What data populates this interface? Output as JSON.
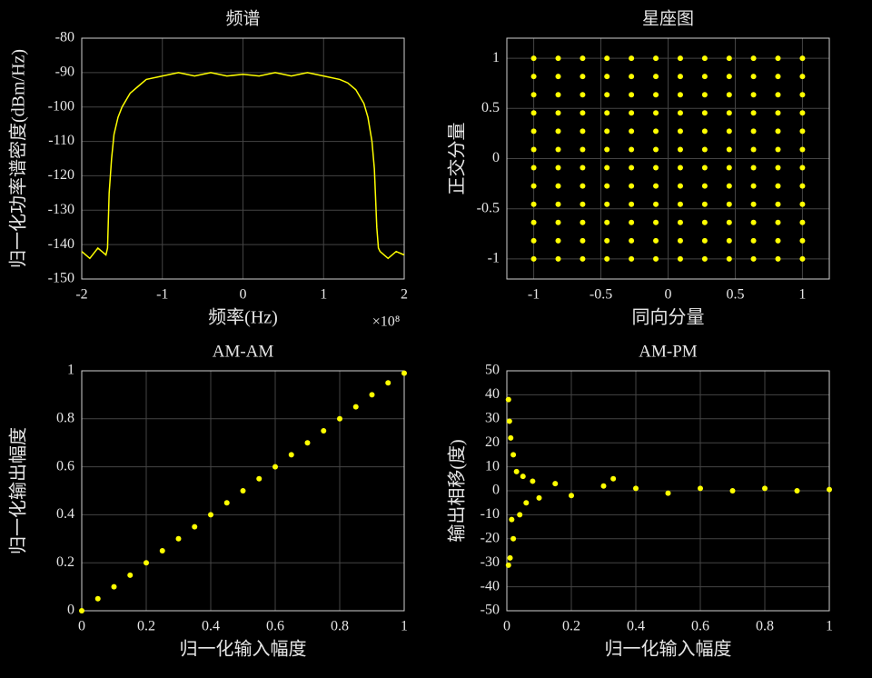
{
  "chart_data": [
    {
      "type": "line",
      "title": "频谱",
      "xlabel": "频率(Hz)",
      "ylabel": "归一化功率谱密度(dBm/Hz)",
      "x_multiplier": "×10⁸",
      "color": "#ffff00",
      "grid": true,
      "xlim": [
        -200000000,
        200000000
      ],
      "ylim": [
        -150,
        -80
      ],
      "xticks": [
        {
          "value": -200000000,
          "label": "-2"
        },
        {
          "value": -100000000,
          "label": "-1"
        },
        {
          "value": 0,
          "label": "0"
        },
        {
          "value": 100000000,
          "label": "1"
        },
        {
          "value": 200000000,
          "label": "2"
        }
      ],
      "yticks": [
        -150,
        -140,
        -130,
        -120,
        -110,
        -100,
        -90,
        -80
      ],
      "x": [
        -200000000,
        -190000000,
        -180000000,
        -170000000,
        -168000000,
        -166000000,
        -163000000,
        -160000000,
        -155000000,
        -150000000,
        -140000000,
        -130000000,
        -120000000,
        -100000000,
        -80000000,
        -60000000,
        -40000000,
        -20000000,
        0,
        20000000,
        40000000,
        60000000,
        80000000,
        100000000,
        120000000,
        130000000,
        140000000,
        150000000,
        155000000,
        160000000,
        163000000,
        166000000,
        168000000,
        170000000,
        180000000,
        190000000,
        200000000
      ],
      "values": [
        -142,
        -144,
        -141,
        -143,
        -141,
        -125,
        -115,
        -108,
        -103,
        -100,
        -96,
        -94,
        -92,
        -91,
        -90,
        -91,
        -90,
        -91,
        -90.5,
        -91,
        -90,
        -91,
        -90,
        -91,
        -92,
        -93,
        -95,
        -99,
        -103,
        -110,
        -118,
        -135,
        -141,
        -142,
        -144,
        -142,
        -143
      ]
    },
    {
      "type": "scatter",
      "title": "星座图",
      "xlabel": "同向分量",
      "ylabel": "正交分量",
      "color": "#ffff00",
      "grid": true,
      "xlim": [
        -1.2,
        1.2
      ],
      "ylim": [
        -1.2,
        1.2
      ],
      "xticks": [
        -1,
        -0.5,
        0,
        0.5,
        1
      ],
      "yticks": [
        -1,
        -0.5,
        0,
        0.5,
        1
      ],
      "x": [
        -1,
        -0.818,
        -0.636,
        -0.455,
        -0.273,
        -0.091,
        0.091,
        0.273,
        0.455,
        0.636,
        0.818,
        1,
        -1,
        -0.818,
        -0.636,
        -0.455,
        -0.273,
        -0.091,
        0.091,
        0.273,
        0.455,
        0.636,
        0.818,
        1,
        -1,
        -0.818,
        -0.636,
        -0.455,
        -0.273,
        -0.091,
        0.091,
        0.273,
        0.455,
        0.636,
        0.818,
        1,
        -1,
        -0.818,
        -0.636,
        -0.455,
        -0.273,
        -0.091,
        0.091,
        0.273,
        0.455,
        0.636,
        0.818,
        1,
        -1,
        -0.818,
        -0.636,
        -0.455,
        -0.273,
        -0.091,
        0.091,
        0.273,
        0.455,
        0.636,
        0.818,
        1,
        -1,
        -0.818,
        -0.636,
        -0.455,
        -0.273,
        -0.091,
        0.091,
        0.273,
        0.455,
        0.636,
        0.818,
        1,
        -1,
        -0.818,
        -0.636,
        -0.455,
        -0.273,
        -0.091,
        0.091,
        0.273,
        0.455,
        0.636,
        0.818,
        1,
        -1,
        -0.818,
        -0.636,
        -0.455,
        -0.273,
        -0.091,
        0.091,
        0.273,
        0.455,
        0.636,
        0.818,
        1,
        -1,
        -0.818,
        -0.636,
        -0.455,
        -0.273,
        -0.091,
        0.091,
        0.273,
        0.455,
        0.636,
        0.818,
        1,
        -1,
        -0.818,
        -0.636,
        -0.455,
        -0.273,
        -0.091,
        0.091,
        0.273,
        0.455,
        0.636,
        0.818,
        1,
        -1,
        -0.818,
        -0.636,
        -0.455,
        -0.273,
        -0.091,
        0.091,
        0.273,
        0.455,
        0.636,
        0.818,
        1,
        -1,
        -0.818,
        -0.636,
        -0.455,
        -0.273,
        -0.091,
        0.091,
        0.273,
        0.455,
        0.636,
        0.818,
        1
      ],
      "values": [
        -1,
        -1,
        -1,
        -1,
        -1,
        -1,
        -1,
        -1,
        -1,
        -1,
        -1,
        -1,
        -0.818,
        -0.818,
        -0.818,
        -0.818,
        -0.818,
        -0.818,
        -0.818,
        -0.818,
        -0.818,
        -0.818,
        -0.818,
        -0.818,
        -0.636,
        -0.636,
        -0.636,
        -0.636,
        -0.636,
        -0.636,
        -0.636,
        -0.636,
        -0.636,
        -0.636,
        -0.636,
        -0.636,
        -0.455,
        -0.455,
        -0.455,
        -0.455,
        -0.455,
        -0.455,
        -0.455,
        -0.455,
        -0.455,
        -0.455,
        -0.455,
        -0.455,
        -0.273,
        -0.273,
        -0.273,
        -0.273,
        -0.273,
        -0.273,
        -0.273,
        -0.273,
        -0.273,
        -0.273,
        -0.273,
        -0.273,
        -0.091,
        -0.091,
        -0.091,
        -0.091,
        -0.091,
        -0.091,
        -0.091,
        -0.091,
        -0.091,
        -0.091,
        -0.091,
        -0.091,
        0.091,
        0.091,
        0.091,
        0.091,
        0.091,
        0.091,
        0.091,
        0.091,
        0.091,
        0.091,
        0.091,
        0.091,
        0.273,
        0.273,
        0.273,
        0.273,
        0.273,
        0.273,
        0.273,
        0.273,
        0.273,
        0.273,
        0.273,
        0.273,
        0.455,
        0.455,
        0.455,
        0.455,
        0.455,
        0.455,
        0.455,
        0.455,
        0.455,
        0.455,
        0.455,
        0.455,
        0.636,
        0.636,
        0.636,
        0.636,
        0.636,
        0.636,
        0.636,
        0.636,
        0.636,
        0.636,
        0.636,
        0.636,
        0.818,
        0.818,
        0.818,
        0.818,
        0.818,
        0.818,
        0.818,
        0.818,
        0.818,
        0.818,
        0.818,
        0.818,
        1,
        1,
        1,
        1,
        1,
        1,
        1,
        1,
        1,
        1,
        1,
        1
      ]
    },
    {
      "type": "scatter",
      "title": "AM-AM",
      "xlabel": "归一化输入幅度",
      "ylabel": "归一化输出幅度",
      "color": "#ffff00",
      "grid": true,
      "xlim": [
        0,
        1
      ],
      "ylim": [
        0,
        1
      ],
      "xticks": [
        0,
        0.2,
        0.4,
        0.6,
        0.8,
        1
      ],
      "yticks": [
        0,
        0.2,
        0.4,
        0.6,
        0.8,
        1
      ],
      "x": [
        0,
        0.05,
        0.1,
        0.15,
        0.2,
        0.25,
        0.3,
        0.35,
        0.4,
        0.45,
        0.5,
        0.55,
        0.6,
        0.65,
        0.7,
        0.75,
        0.8,
        0.85,
        0.9,
        0.95,
        1
      ],
      "values": [
        0,
        0.05,
        0.1,
        0.148,
        0.2,
        0.25,
        0.3,
        0.35,
        0.4,
        0.45,
        0.5,
        0.55,
        0.6,
        0.65,
        0.7,
        0.75,
        0.8,
        0.85,
        0.9,
        0.95,
        0.99
      ]
    },
    {
      "type": "scatter",
      "title": "AM-PM",
      "xlabel": "归一化输入幅度",
      "ylabel": "输出相移(度)",
      "color": "#ffff00",
      "grid": true,
      "xlim": [
        0,
        1
      ],
      "ylim": [
        -50,
        50
      ],
      "xticks": [
        0,
        0.2,
        0.4,
        0.6,
        0.8,
        1
      ],
      "yticks": [
        -50,
        -40,
        -30,
        -20,
        -10,
        0,
        10,
        20,
        30,
        40,
        50
      ],
      "x": [
        0.005,
        0.005,
        0.008,
        0.01,
        0.012,
        0.015,
        0.02,
        0.02,
        0.03,
        0.04,
        0.05,
        0.06,
        0.08,
        0.1,
        0.15,
        0.2,
        0.3,
        0.33,
        0.4,
        0.5,
        0.6,
        0.7,
        0.8,
        0.9,
        1
      ],
      "values": [
        38,
        -31,
        29,
        -28,
        22,
        -12,
        15,
        -20,
        8,
        -10,
        6,
        -5,
        4,
        -3,
        3,
        -2,
        2,
        5,
        1,
        -1,
        1,
        0,
        1,
        0,
        0.5
      ]
    }
  ]
}
